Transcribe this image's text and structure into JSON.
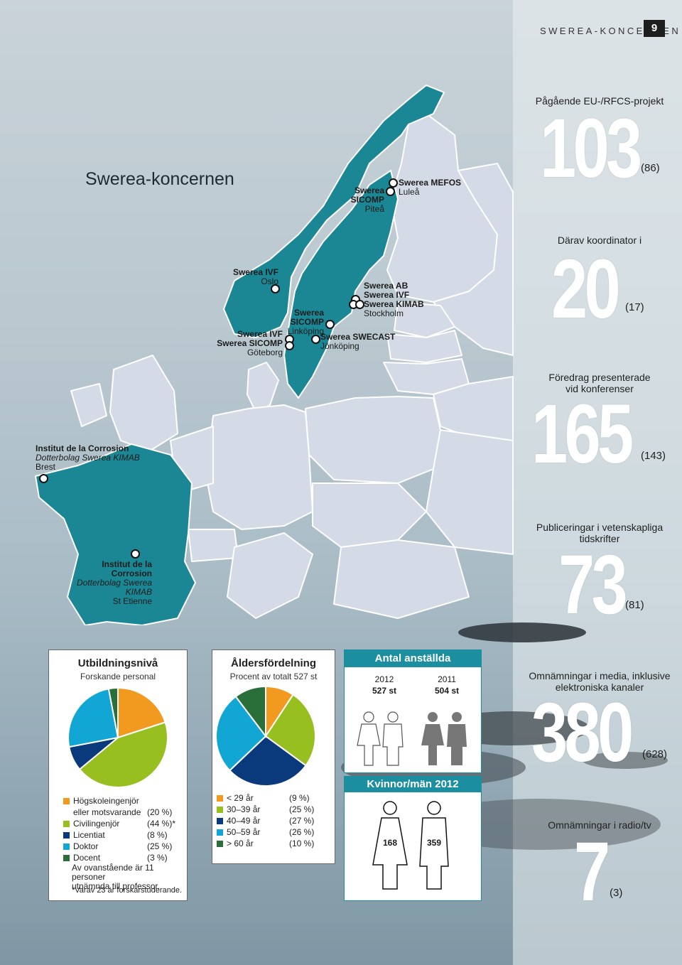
{
  "header": {
    "label": "SWEREA-KONCERNEN",
    "page_number": "9"
  },
  "title": "Swerea-koncernen",
  "map": {
    "colors": {
      "highlight": "#1b8794",
      "other": "#d4dae6",
      "border": "#ffffff"
    },
    "locations": [
      {
        "lines": [
          "Swerea MEFOS"
        ],
        "city": "Luleå"
      },
      {
        "lines": [
          "Swerea SICOMP"
        ],
        "city": "Piteå"
      },
      {
        "lines": [
          "Swerea IVF"
        ],
        "city": "Oslo"
      },
      {
        "lines": [
          "Swerea AB",
          "Swerea IVF",
          "Swerea KIMAB"
        ],
        "city": "Stockholm"
      },
      {
        "lines": [
          "Swerea SICOMP"
        ],
        "city": "Linköping"
      },
      {
        "lines": [
          "Swerea IVF",
          "Swerea SICOMP"
        ],
        "city": "Göteborg"
      },
      {
        "lines": [
          "Swerea SWECAST"
        ],
        "city": "Jönköping"
      },
      {
        "lines": [
          "Institut de la Corrosion"
        ],
        "sub": "Dotterbolag Swerea KIMAB",
        "city": "Brest"
      },
      {
        "lines": [
          "Institut de la Corrosion"
        ],
        "sub": "Dotterbolag Swerea KIMAB",
        "city": "St Etienne"
      }
    ]
  },
  "stats": [
    {
      "label": "Pågående EU-/RFCS-projekt",
      "value": "103",
      "prev": "(86)"
    },
    {
      "label": "Därav koordinator i",
      "value": "20",
      "prev": "(17)"
    },
    {
      "label1": "Föredrag presenterade",
      "label2": "vid konferenser",
      "value": "165",
      "prev": "(143)"
    },
    {
      "label1": "Publiceringar i vetenskapliga",
      "label2": "tidskrifter",
      "value": "73",
      "prev": "(81)"
    },
    {
      "label1": "Omnämningar i media, inklusive",
      "label2": "elektroniska kanaler",
      "value": "380",
      "prev": "(628)"
    },
    {
      "label": "Omnämningar i radio/tv",
      "value": "7",
      "prev": "(3)"
    }
  ],
  "education": {
    "title": "Utbildningsnivå",
    "subtitle": "Forskande personal",
    "items": [
      {
        "label": "Högskoleingenjör",
        "label2": "eller motsvarande",
        "pct": "(20 %)",
        "value": 20,
        "color": "#f29a1f"
      },
      {
        "label": "Civilingenjör",
        "pct": "(44 %)*",
        "value": 44,
        "color": "#97bf1f"
      },
      {
        "label": "Licentiat",
        "pct": "(8 %)",
        "value": 8,
        "color": "#0b3a7c"
      },
      {
        "label": "Doktor",
        "pct": "(25 %)",
        "value": 25,
        "color": "#12a6d4"
      },
      {
        "label": "Docent",
        "pct": "(3 %)",
        "value": 3,
        "color": "#2a6e3a"
      }
    ],
    "note1": "Av ovanstående är 11 personer",
    "note2": "utnämnda till professor.",
    "footnote": "*Varav 23 är forskarstuderande."
  },
  "age": {
    "title": "Åldersfördelning",
    "subtitle": "Procent av totalt 527 st",
    "items": [
      {
        "label": "< 29 år",
        "pct": "(9 %)",
        "value": 9,
        "color": "#f29a1f"
      },
      {
        "label": "30–39 år",
        "pct": "(25 %)",
        "value": 25,
        "color": "#97bf1f"
      },
      {
        "label": "40–49 år",
        "pct": "(27 %)",
        "value": 27,
        "color": "#0b3a7c"
      },
      {
        "label": "50–59 år",
        "pct": "(26 %)",
        "value": 26,
        "color": "#12a6d4"
      },
      {
        "label": "> 60 år",
        "pct": "(10 %)",
        "value": 10,
        "color": "#2a6e3a"
      }
    ]
  },
  "employees": {
    "title": "Antal anställda",
    "y2012": "2012",
    "v2012": "527 st",
    "y2011": "2011",
    "v2011": "504 st"
  },
  "gender": {
    "title": "Kvinnor/män 2012",
    "women": "168",
    "men": "359"
  }
}
